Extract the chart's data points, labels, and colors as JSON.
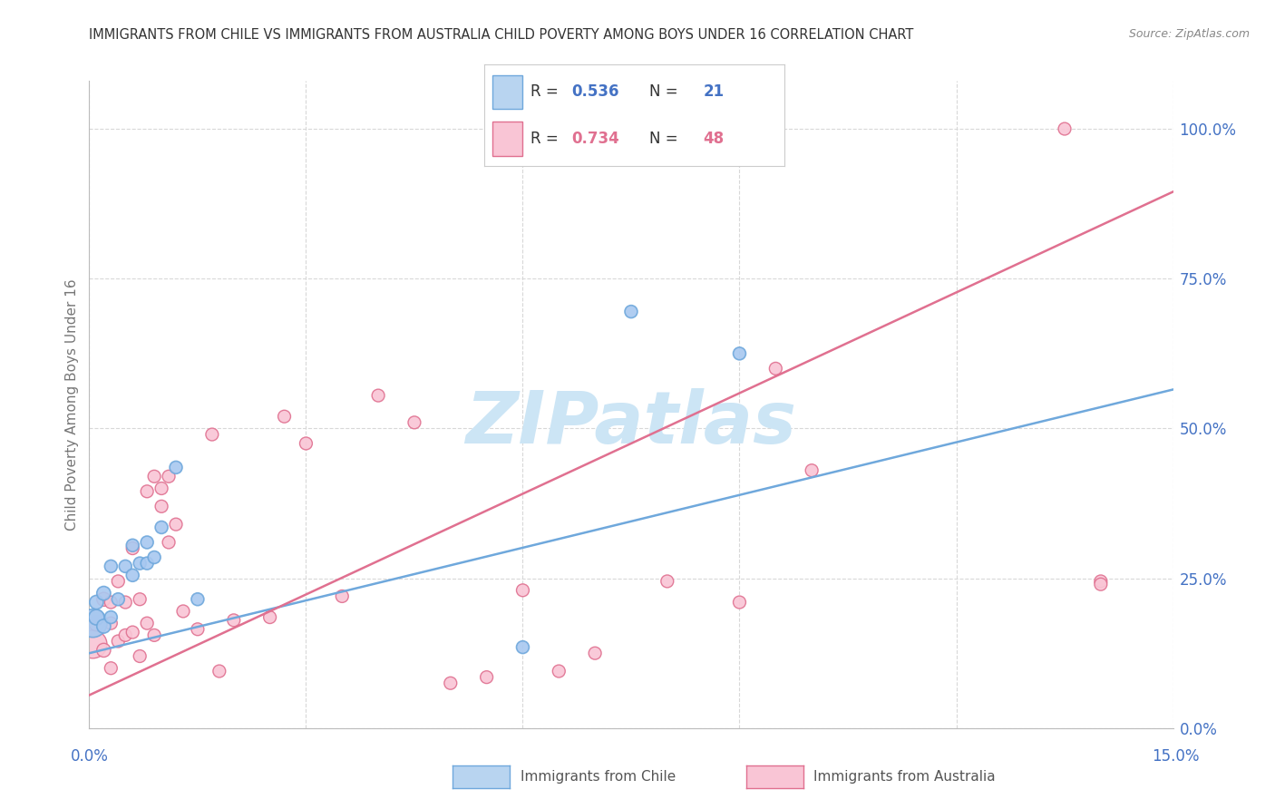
{
  "title": "IMMIGRANTS FROM CHILE VS IMMIGRANTS FROM AUSTRALIA CHILD POVERTY AMONG BOYS UNDER 16 CORRELATION CHART",
  "source": "Source: ZipAtlas.com",
  "ylabel": "Child Poverty Among Boys Under 16",
  "ytick_labels": [
    "0.0%",
    "25.0%",
    "50.0%",
    "75.0%",
    "100.0%"
  ],
  "ytick_vals": [
    0.0,
    0.25,
    0.5,
    0.75,
    1.0
  ],
  "xlim": [
    0.0,
    0.15
  ],
  "ylim": [
    0.0,
    1.08
  ],
  "chile_color_fill": "#a8c8f0",
  "chile_color_edge": "#6fa8dc",
  "australia_color_fill": "#f9c5d5",
  "australia_color_edge": "#e07090",
  "chile_line_color": "#6fa8dc",
  "australia_line_color": "#e07090",
  "chile_R": "0.536",
  "chile_N": "21",
  "australia_R": "0.734",
  "australia_N": "48",
  "chile_x": [
    0.0005,
    0.001,
    0.001,
    0.002,
    0.002,
    0.003,
    0.003,
    0.004,
    0.005,
    0.006,
    0.006,
    0.007,
    0.008,
    0.008,
    0.009,
    0.01,
    0.012,
    0.015,
    0.06,
    0.075,
    0.09
  ],
  "chile_y": [
    0.175,
    0.185,
    0.21,
    0.17,
    0.225,
    0.185,
    0.27,
    0.215,
    0.27,
    0.255,
    0.305,
    0.275,
    0.31,
    0.275,
    0.285,
    0.335,
    0.435,
    0.215,
    0.135,
    0.695,
    0.625
  ],
  "chile_size": [
    500,
    150,
    120,
    120,
    120,
    100,
    100,
    100,
    100,
    100,
    100,
    100,
    100,
    100,
    100,
    100,
    100,
    100,
    100,
    100,
    100
  ],
  "australia_x": [
    0.0005,
    0.001,
    0.001,
    0.002,
    0.002,
    0.003,
    0.003,
    0.003,
    0.004,
    0.004,
    0.005,
    0.005,
    0.006,
    0.006,
    0.007,
    0.007,
    0.008,
    0.008,
    0.009,
    0.009,
    0.01,
    0.01,
    0.011,
    0.011,
    0.012,
    0.013,
    0.015,
    0.017,
    0.018,
    0.02,
    0.025,
    0.027,
    0.03,
    0.035,
    0.04,
    0.045,
    0.05,
    0.055,
    0.06,
    0.065,
    0.07,
    0.08,
    0.09,
    0.095,
    0.1,
    0.135,
    0.14,
    0.14
  ],
  "australia_y": [
    0.14,
    0.175,
    0.185,
    0.13,
    0.215,
    0.175,
    0.21,
    0.1,
    0.145,
    0.245,
    0.155,
    0.21,
    0.16,
    0.3,
    0.12,
    0.215,
    0.175,
    0.395,
    0.155,
    0.42,
    0.4,
    0.37,
    0.31,
    0.42,
    0.34,
    0.195,
    0.165,
    0.49,
    0.095,
    0.18,
    0.185,
    0.52,
    0.475,
    0.22,
    0.555,
    0.51,
    0.075,
    0.085,
    0.23,
    0.095,
    0.125,
    0.245,
    0.21,
    0.6,
    0.43,
    1.0,
    0.245,
    0.24
  ],
  "australia_size": [
    500,
    150,
    120,
    120,
    120,
    100,
    100,
    100,
    100,
    100,
    100,
    100,
    100,
    100,
    100,
    100,
    100,
    100,
    100,
    100,
    100,
    100,
    100,
    100,
    100,
    100,
    100,
    100,
    100,
    100,
    100,
    100,
    100,
    100,
    100,
    100,
    100,
    100,
    100,
    100,
    100,
    100,
    100,
    100,
    100,
    100,
    100,
    100
  ],
  "chile_line_x0": 0.0,
  "chile_line_x1": 0.15,
  "chile_line_y0": 0.125,
  "chile_line_y1": 0.565,
  "australia_line_x0": 0.0,
  "australia_line_x1": 0.15,
  "australia_line_y0": 0.055,
  "australia_line_y1": 0.895,
  "watermark": "ZIPatlas",
  "watermark_color": "#cce5f5",
  "legend_box_chile_fill": "#b8d4f0",
  "legend_box_chile_edge": "#6fa8dc",
  "legend_box_aus_fill": "#f9c5d5",
  "legend_box_aus_edge": "#e07090",
  "legend_text_color": "#333333",
  "legend_val_color_chile": "#4472c4",
  "legend_val_color_aus": "#e07090",
  "grid_color": "#d8d8d8",
  "background_color": "#ffffff",
  "title_color": "#333333",
  "axis_label_color": "#4472c4",
  "ylabel_color": "#777777"
}
